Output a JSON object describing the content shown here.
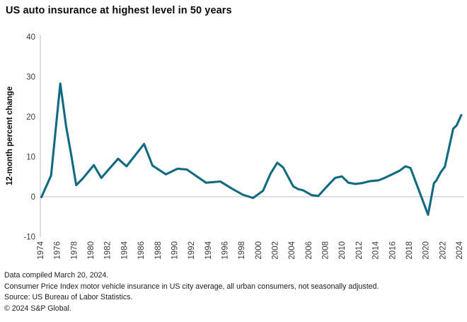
{
  "title": "US auto insurance at highest level in 50 years",
  "colors": {
    "line": "#116A81",
    "axis": "#c9c9c9",
    "tick_text": "#3a3a3a",
    "title_text": "#0b0b0b",
    "footer_text": "#1c1c1c",
    "background": "#ffffff"
  },
  "footer": {
    "lines": [
      "Data compiled March 20, 2024.",
      "Consumer Price Index motor vehicle insurance in US city average, all urban consumers, not seasonally adjusted.",
      "Source: US Bureau of Labor Statistics.",
      "© 2024 S&P Global."
    ]
  },
  "chart_data": {
    "type": "line",
    "title": "US auto insurance at highest level in 50 years",
    "xlabel": "",
    "ylabel": "12-month percent change",
    "ylim": [
      -10,
      40
    ],
    "xlim": [
      1973.6,
      2024.9
    ],
    "yticks": [
      40,
      30,
      20,
      10,
      0,
      -10
    ],
    "xticks": [
      1974,
      1976,
      1978,
      1980,
      1982,
      1984,
      1986,
      1988,
      1990,
      1992,
      1994,
      1996,
      1998,
      2000,
      2002,
      2004,
      2006,
      2008,
      2010,
      2012,
      2014,
      2016,
      2018,
      2020,
      2022,
      2024
    ],
    "grid": "zero line only, light gray; single light gray y-axis line at left",
    "legend": "none",
    "series": [
      {
        "name": "US CPI motor vehicle insurance, 12-month percent change",
        "color": "#116A81",
        "points": [
          [
            1974.0,
            -0.3
          ],
          [
            1975.2,
            5.3
          ],
          [
            1976.3,
            28.3
          ],
          [
            1977.0,
            17.5
          ],
          [
            1977.6,
            10.5
          ],
          [
            1978.2,
            2.9
          ],
          [
            1979.0,
            4.6
          ],
          [
            1980.3,
            7.9
          ],
          [
            1981.2,
            4.7
          ],
          [
            1983.2,
            9.5
          ],
          [
            1984.2,
            7.6
          ],
          [
            1986.3,
            13.2
          ],
          [
            1987.3,
            7.8
          ],
          [
            1988.9,
            5.6
          ],
          [
            1990.3,
            7.0
          ],
          [
            1991.4,
            6.8
          ],
          [
            1993.7,
            3.5
          ],
          [
            1995.4,
            3.8
          ],
          [
            1996.9,
            1.9
          ],
          [
            1998.1,
            0.5
          ],
          [
            1999.3,
            -0.3
          ],
          [
            2000.5,
            1.5
          ],
          [
            2001.4,
            5.8
          ],
          [
            2002.2,
            8.5
          ],
          [
            2002.9,
            7.3
          ],
          [
            2004.1,
            2.6
          ],
          [
            2004.7,
            1.9
          ],
          [
            2005.3,
            1.6
          ],
          [
            2006.3,
            0.4
          ],
          [
            2007.1,
            0.2
          ],
          [
            2008.0,
            2.3
          ],
          [
            2009.1,
            4.7
          ],
          [
            2009.9,
            5.1
          ],
          [
            2010.7,
            3.5
          ],
          [
            2011.5,
            3.2
          ],
          [
            2012.3,
            3.4
          ],
          [
            2013.3,
            3.9
          ],
          [
            2014.3,
            4.1
          ],
          [
            2015.1,
            4.8
          ],
          [
            2016.0,
            5.7
          ],
          [
            2016.8,
            6.5
          ],
          [
            2017.5,
            7.6
          ],
          [
            2018.1,
            7.2
          ],
          [
            2020.2,
            -4.5
          ],
          [
            2020.9,
            3.4
          ],
          [
            2021.2,
            4.1
          ],
          [
            2021.7,
            6.1
          ],
          [
            2022.2,
            7.5
          ],
          [
            2023.2,
            17.0
          ],
          [
            2023.6,
            17.8
          ],
          [
            2024.2,
            20.6
          ]
        ]
      }
    ]
  }
}
